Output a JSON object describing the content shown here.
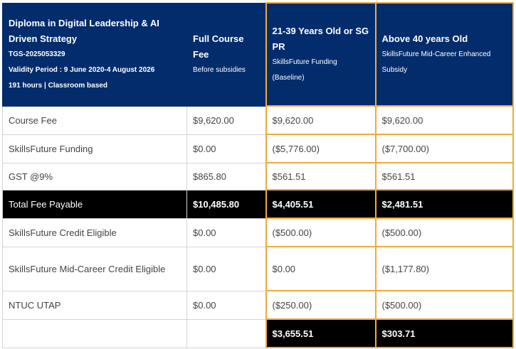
{
  "table": {
    "header": [
      {
        "title": "Diploma in Digital Leadership & AI Driven Strategy",
        "details": [
          "TGS-2025053329",
          "Validity Period : 9 June 2020-4 August 2026",
          "191 hours | Classroom based"
        ]
      },
      {
        "title": "Full Course Fee",
        "details": [
          "Before subsidies"
        ]
      },
      {
        "title": "21-39 Years Old or SG PR",
        "details": [
          "SkillsFuture Funding (Baseline)"
        ]
      },
      {
        "title": "Above 40 years Old",
        "details": [
          "SkillsFuture Mid-Career Enhanced Subsidy"
        ]
      }
    ],
    "rows": [
      [
        "Course Fee",
        "$9,620.00",
        "$9,620.00",
        "$9,620.00"
      ],
      [
        "SkillsFuture Funding",
        "$0.00",
        "($5,776.00)",
        "($7,700.00)"
      ],
      [
        "GST @9%",
        "$865.80",
        "$561.51",
        "$561.51"
      ],
      [
        "Total Fee Payable",
        "$10,485.80",
        "$4,405.51",
        "$2,481.51"
      ],
      [
        "SkillsFuture Credit Eligible",
        "$0.00",
        "($500.00)",
        "($500.00)"
      ],
      [
        "SkillsFuture Mid-Career Credit Eligible",
        "$0.00",
        "$0.00",
        "($1,177.80)"
      ],
      [
        "NTUC UTAP",
        "$0.00",
        "($250.00)",
        "($500.00)"
      ],
      [
        null,
        null,
        "$3,655.51",
        "$303.71"
      ]
    ]
  }
}
